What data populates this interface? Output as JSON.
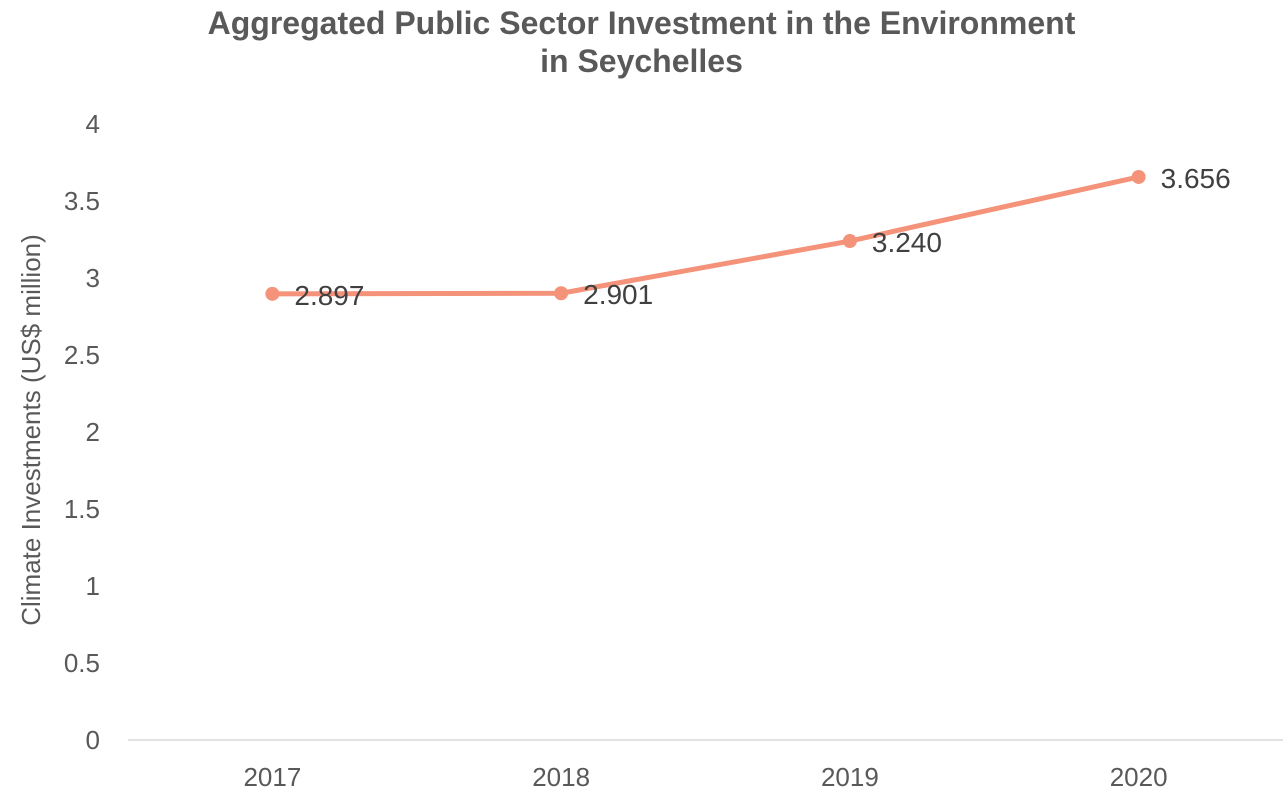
{
  "chart_data": {
    "type": "line",
    "title_lines": [
      "Aggregated Public Sector Investment in the Environment",
      "in Seychelles"
    ],
    "xlabel": "",
    "ylabel": "Climate Investments (US$ million)",
    "categories": [
      "2017",
      "2018",
      "2019",
      "2020"
    ],
    "series": [
      {
        "values": [
          2.897,
          2.901,
          3.24,
          3.656
        ],
        "labels": [
          "2.897",
          "2.901",
          "3.240",
          "3.656"
        ]
      }
    ],
    "ylim": [
      0,
      4
    ],
    "yticks": [
      "0",
      "0.5",
      "1",
      "1.5",
      "2",
      "2.5",
      "3",
      "3.5",
      "4"
    ],
    "ytick_values": [
      0,
      0.5,
      1,
      1.5,
      2,
      2.5,
      3,
      3.5,
      4
    ],
    "grid": false,
    "legend": "none",
    "colors": {
      "line": "#F4927A",
      "axis": "#D9D9D9",
      "text": "#595959"
    }
  }
}
